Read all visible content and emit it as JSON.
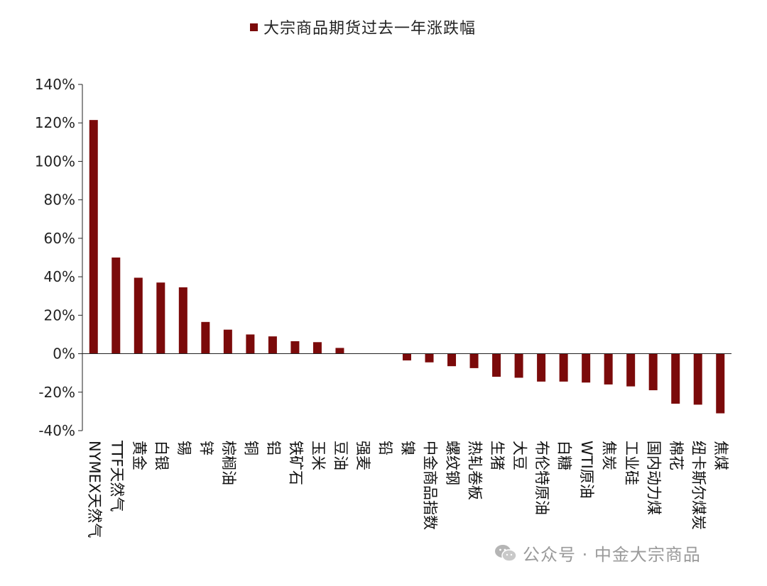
{
  "chart_data": {
    "type": "bar",
    "title": "",
    "xlabel": "",
    "ylabel": "",
    "series": [
      {
        "name": "大宗商品期货过去一年涨跌幅",
        "color": "#7b0a0a"
      }
    ],
    "categories": [
      "NYMEX天然气",
      "TTF天然气",
      "黄金",
      "白银",
      "锡",
      "锌",
      "棕榈油",
      "铜",
      "铝",
      "铁矿石",
      "玉米",
      "豆油",
      "强麦",
      "铅",
      "镍",
      "中金商品指数",
      "螺纹钢",
      "热轧卷板",
      "生猪",
      "大豆",
      "布伦特原油",
      "白糖",
      "WTI原油",
      "焦炭",
      "工业硅",
      "国内动力煤",
      "棉花",
      "纽卡斯尔煤炭",
      "焦煤"
    ],
    "values": [
      121.5,
      50,
      39.5,
      37,
      34.5,
      16.5,
      12.5,
      10,
      9,
      6.5,
      6,
      3,
      0,
      0,
      -3.5,
      -4.5,
      -6.5,
      -7.5,
      -12,
      -12.5,
      -14.5,
      -14.5,
      -15,
      -16,
      -17,
      -19,
      -26,
      -26.5,
      -31
    ],
    "ylim": [
      -40,
      140
    ],
    "yticks": [
      -40,
      -20,
      0,
      20,
      40,
      60,
      80,
      100,
      120,
      140
    ],
    "ytick_format": "percent",
    "grid": false,
    "legend_position": "top-center"
  },
  "watermark": {
    "icon": "wechat-icon",
    "text": "公众号 · 中金大宗商品"
  }
}
